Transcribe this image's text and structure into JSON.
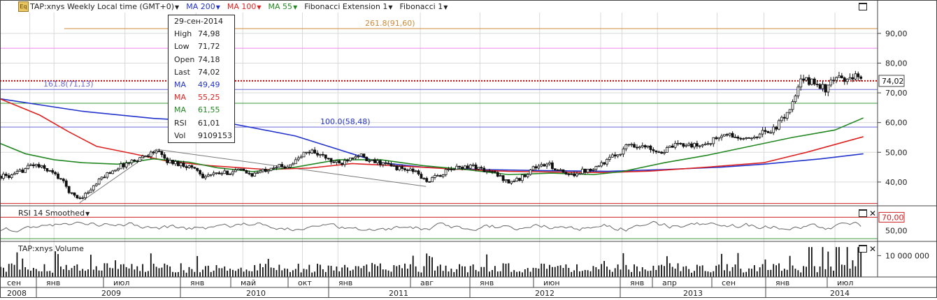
{
  "toolbar": {
    "icon_label": "Eq",
    "symbol_title": "TAP:xnys Weekly Local time (GMT+0)",
    "ma200_label": "MA 200",
    "ma100_label": "MA 100",
    "ma55_label": "MA 55",
    "fib_ext_label": "Fibonacci Extension 1",
    "fib_label": "Fibonacci 1"
  },
  "tooltip": {
    "date": "29-сен-2014",
    "rows": [
      {
        "label": "High",
        "value": "74,98",
        "color": "#222222"
      },
      {
        "label": "Low",
        "value": "71,72",
        "color": "#222222"
      },
      {
        "label": "Open",
        "value": "74,18",
        "color": "#222222"
      },
      {
        "label": "Last",
        "value": "74,02",
        "color": "#222222"
      },
      {
        "label": "MA",
        "value": "49,49",
        "color": "#2233cc"
      },
      {
        "label": "MA",
        "value": "55,25",
        "color": "#dd2222"
      },
      {
        "label": "MA",
        "value": "61,55",
        "color": "#228822"
      },
      {
        "label": "RSI",
        "value": "61,01",
        "color": "#222222"
      },
      {
        "label": "Vol",
        "value": "9109153",
        "color": "#222222"
      }
    ]
  },
  "price_annotations": {
    "fib_ext_top": "261.8(91,60)",
    "fib_161": "161.8(71,13)",
    "fib_100": "100.0(58,48)",
    "last_price": "74,02"
  },
  "rsi_panel": {
    "title": "RSI 14 Smoothed",
    "ticks": [
      "50,00"
    ],
    "level_label": "70,00"
  },
  "volume_panel": {
    "title": "TAP:xnys Volume",
    "ticks": [
      "10 000 000"
    ]
  },
  "colors": {
    "ma200": "#2233cc",
    "ma100": "#dd2222",
    "ma55": "#228822",
    "fib_orange": "#d08a3a",
    "fib_pink": "#ee88ee",
    "last_price": "#cc0000",
    "rsi_line": "#666666",
    "grid": "#d9d9d9"
  },
  "chart_data": {
    "type": "line",
    "subtype": "candlestick",
    "x_axis": {
      "months": [
        "сен",
        "янв",
        "июл",
        "янв",
        "май",
        "окт",
        "янв",
        "авг",
        "янв",
        "июн",
        "янв",
        "апр",
        "сен",
        "янв",
        "июл"
      ],
      "years": [
        "2008",
        "2009",
        "2010",
        "2011",
        "2012",
        "2013",
        "2014"
      ]
    },
    "ylim": [
      32,
      97
    ],
    "y_ticks": [
      "40,00",
      "50,00",
      "60,00",
      "70,00",
      "80,00",
      "90,00"
    ],
    "grid": true,
    "price_points": [
      [
        2008.71,
        42
      ],
      [
        2008.85,
        46
      ],
      [
        2008.96,
        44
      ],
      [
        2009.05,
        41
      ],
      [
        2009.12,
        36
      ],
      [
        2009.18,
        34.5
      ],
      [
        2009.25,
        37
      ],
      [
        2009.35,
        42
      ],
      [
        2009.45,
        45
      ],
      [
        2009.55,
        47
      ],
      [
        2009.65,
        49
      ],
      [
        2009.72,
        50.5
      ],
      [
        2009.8,
        47
      ],
      [
        2009.9,
        46
      ],
      [
        2010.0,
        44.5
      ],
      [
        2010.05,
        42
      ],
      [
        2010.12,
        42.5
      ],
      [
        2010.2,
        43
      ],
      [
        2010.3,
        44
      ],
      [
        2010.4,
        42.5
      ],
      [
        2010.48,
        44
      ],
      [
        2010.55,
        45.5
      ],
      [
        2010.62,
        45
      ],
      [
        2010.7,
        47
      ],
      [
        2010.76,
        49.5
      ],
      [
        2010.82,
        50.5
      ],
      [
        2010.88,
        49
      ],
      [
        2010.95,
        47
      ],
      [
        2011.02,
        46
      ],
      [
        2011.08,
        48.5
      ],
      [
        2011.15,
        49.5
      ],
      [
        2011.2,
        47
      ],
      [
        2011.3,
        46.5
      ],
      [
        2011.4,
        45
      ],
      [
        2011.48,
        44
      ],
      [
        2011.55,
        43.5
      ],
      [
        2011.62,
        40
      ],
      [
        2011.7,
        42
      ],
      [
        2011.78,
        44
      ],
      [
        2011.85,
        45
      ],
      [
        2011.95,
        45.5
      ],
      [
        2012.02,
        44
      ],
      [
        2012.1,
        43
      ],
      [
        2012.2,
        40
      ],
      [
        2012.28,
        41
      ],
      [
        2012.38,
        45
      ],
      [
        2012.48,
        46
      ],
      [
        2012.55,
        44
      ],
      [
        2012.62,
        42
      ],
      [
        2012.7,
        43.5
      ],
      [
        2012.75,
        44
      ],
      [
        2012.85,
        46
      ],
      [
        2012.92,
        48
      ],
      [
        2013.0,
        50.5
      ],
      [
        2013.05,
        53
      ],
      [
        2013.12,
        52
      ],
      [
        2013.2,
        51.5
      ],
      [
        2013.28,
        50
      ],
      [
        2013.36,
        52
      ],
      [
        2013.45,
        53
      ],
      [
        2013.52,
        52
      ],
      [
        2013.6,
        53
      ],
      [
        2013.68,
        55
      ],
      [
        2013.75,
        56
      ],
      [
        2013.8,
        55
      ],
      [
        2013.88,
        54
      ],
      [
        2013.95,
        56
      ],
      [
        2014.02,
        57
      ],
      [
        2014.08,
        58
      ],
      [
        2014.14,
        62
      ],
      [
        2014.2,
        66
      ],
      [
        2014.26,
        74
      ],
      [
        2014.32,
        74
      ],
      [
        2014.38,
        73
      ],
      [
        2014.44,
        71
      ],
      [
        2014.5,
        75
      ],
      [
        2014.56,
        74
      ],
      [
        2014.62,
        76
      ],
      [
        2014.68,
        74.02
      ]
    ],
    "series": [
      {
        "name": "MA 200",
        "points": [
          [
            2008.62,
            68
          ],
          [
            2009.2,
            63.8
          ],
          [
            2009.7,
            61.4
          ],
          [
            2010.2,
            60.1
          ],
          [
            2010.7,
            55.5
          ],
          [
            2011.0,
            51
          ],
          [
            2011.3,
            46.5
          ],
          [
            2011.6,
            45
          ],
          [
            2012.0,
            44.2
          ],
          [
            2012.5,
            43.8
          ],
          [
            2012.9,
            43.6
          ],
          [
            2013.3,
            44.2
          ],
          [
            2013.7,
            45
          ],
          [
            2014.0,
            46
          ],
          [
            2014.4,
            47.8
          ],
          [
            2014.7,
            49.49
          ]
        ]
      },
      {
        "name": "MA 100",
        "points": [
          [
            2008.62,
            68
          ],
          [
            2008.9,
            62.5
          ],
          [
            2009.1,
            57
          ],
          [
            2009.3,
            52
          ],
          [
            2009.55,
            49.6
          ],
          [
            2009.8,
            47
          ],
          [
            2010.1,
            45.5
          ],
          [
            2010.5,
            44.2
          ],
          [
            2010.8,
            44.7
          ],
          [
            2011.1,
            46.2
          ],
          [
            2011.4,
            45.5
          ],
          [
            2011.8,
            44.4
          ],
          [
            2012.2,
            43.6
          ],
          [
            2012.6,
            43.3
          ],
          [
            2012.9,
            43.2
          ],
          [
            2013.2,
            43.7
          ],
          [
            2013.6,
            45
          ],
          [
            2014.0,
            46.5
          ],
          [
            2014.3,
            50
          ],
          [
            2014.7,
            55.25
          ]
        ]
      },
      {
        "name": "MA 55",
        "points": [
          [
            2008.62,
            53
          ],
          [
            2008.8,
            49.5
          ],
          [
            2009.0,
            47.5
          ],
          [
            2009.2,
            46.5
          ],
          [
            2009.45,
            46
          ],
          [
            2009.7,
            47.8
          ],
          [
            2009.95,
            46.7
          ],
          [
            2010.15,
            44.8
          ],
          [
            2010.4,
            43.5
          ],
          [
            2010.7,
            45
          ],
          [
            2011.0,
            47.5
          ],
          [
            2011.3,
            47.5
          ],
          [
            2011.6,
            45.5
          ],
          [
            2011.9,
            44.2
          ],
          [
            2012.2,
            42.5
          ],
          [
            2012.5,
            43
          ],
          [
            2012.8,
            42.5
          ],
          [
            2013.0,
            43.5
          ],
          [
            2013.3,
            46.5
          ],
          [
            2013.6,
            49
          ],
          [
            2013.9,
            52
          ],
          [
            2014.2,
            55
          ],
          [
            2014.5,
            57.5
          ],
          [
            2014.7,
            61.55
          ]
        ]
      }
    ],
    "horizontal_levels": [
      {
        "value": 91.6,
        "label": "261.8(91,60)",
        "color": "#d08a3a"
      },
      {
        "value": 85.0,
        "color": "#ee88ee"
      },
      {
        "value": 71.13,
        "label": "161.8(71,13)",
        "color": "#6a6ad8"
      },
      {
        "value": 66.5,
        "color": "#3a9a3a"
      },
      {
        "value": 58.48,
        "label": "100.0(58,48)",
        "color": "#6a6ad8"
      },
      {
        "value": 74.02,
        "label": "74,02",
        "color": "#cc0000",
        "style": "dotted"
      },
      {
        "value": 32.8,
        "color": "#cc2222"
      }
    ],
    "rsi": {
      "ylim": [
        35,
        85
      ],
      "level": 70
    },
    "volume": {
      "ylim": [
        0,
        16000000
      ],
      "level": 10000000
    }
  }
}
